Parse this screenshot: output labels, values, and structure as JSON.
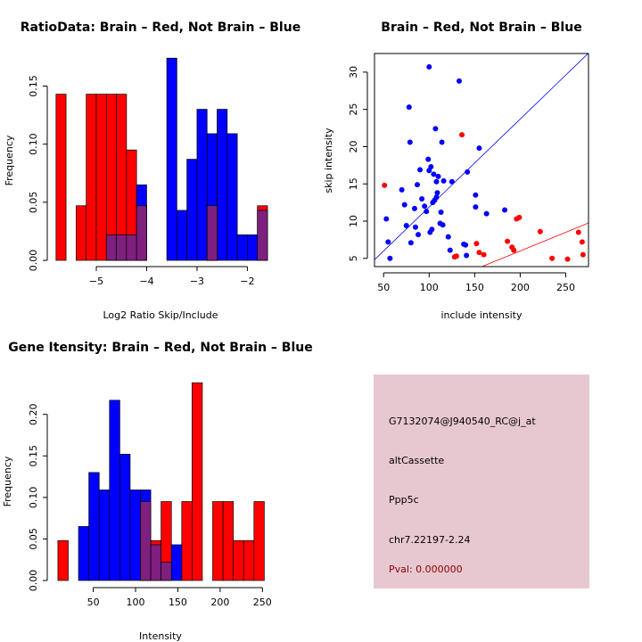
{
  "colors": {
    "brain": "#ff0000",
    "not_brain": "#0000ff",
    "overlap": "#7f1f7f",
    "panel_bg": "#e8c8d0",
    "pval": "#8b0000"
  },
  "chart_data": [
    {
      "type": "histogram",
      "title": "RatioData: Brain – Red, Not Brain – Blue",
      "xlabel": "Log2 Ratio Skip/Include",
      "ylabel": "Frequency",
      "xlim": [
        -5.85,
        -1.6
      ],
      "ylim": [
        0,
        0.178
      ],
      "xticks": [
        -5,
        -4,
        -3,
        -2
      ],
      "xtick_labels": [
        "−5",
        "−4",
        "−3",
        "−2"
      ],
      "yticks": [
        0,
        0.05,
        0.1,
        0.15
      ],
      "ytick_labels": [
        "0.00",
        "0.05",
        "0.10",
        "0.15"
      ],
      "bin_width": 0.2,
      "series": [
        {
          "name": "Brain",
          "color": "red",
          "bins": [
            {
              "x": -5.8,
              "h": 0.143
            },
            {
              "x": -5.4,
              "h": 0.047
            },
            {
              "x": -5.2,
              "h": 0.143
            },
            {
              "x": -5.0,
              "h": 0.143
            },
            {
              "x": -4.8,
              "h": 0.143
            },
            {
              "x": -4.6,
              "h": 0.143
            },
            {
              "x": -4.4,
              "h": 0.095
            },
            {
              "x": -4.2,
              "h": 0.047
            },
            {
              "x": -2.8,
              "h": 0.047
            },
            {
              "x": -1.8,
              "h": 0.047
            }
          ]
        },
        {
          "name": "Not Brain",
          "color": "blue",
          "bins": [
            {
              "x": -4.8,
              "h": 0.022
            },
            {
              "x": -4.6,
              "h": 0.022
            },
            {
              "x": -4.4,
              "h": 0.022
            },
            {
              "x": -4.2,
              "h": 0.065
            },
            {
              "x": -3.6,
              "h": 0.174
            },
            {
              "x": -3.4,
              "h": 0.043
            },
            {
              "x": -3.2,
              "h": 0.087
            },
            {
              "x": -3.0,
              "h": 0.13
            },
            {
              "x": -2.8,
              "h": 0.109
            },
            {
              "x": -2.6,
              "h": 0.13
            },
            {
              "x": -2.4,
              "h": 0.109
            },
            {
              "x": -2.2,
              "h": 0.022
            },
            {
              "x": -2.0,
              "h": 0.022
            },
            {
              "x": -1.8,
              "h": 0.043
            }
          ]
        }
      ]
    },
    {
      "type": "scatter",
      "title": "Brain – Red, Not Brain – Blue",
      "xlabel": "include intensity",
      "ylabel": "skip intensity",
      "xlim": [
        40,
        275
      ],
      "ylim": [
        3.9,
        32.5
      ],
      "xticks": [
        50,
        100,
        150,
        200,
        250
      ],
      "xtick_labels": [
        "50",
        "100",
        "150",
        "200",
        "250"
      ],
      "yticks": [
        5,
        10,
        15,
        20,
        25,
        30
      ],
      "ytick_labels": [
        "5",
        "10",
        "15",
        "20",
        "25",
        "30"
      ],
      "lines": [
        {
          "name": "not-brain-fit",
          "color": "blue",
          "intercept": 0.1,
          "slope": 0.118
        },
        {
          "name": "brain-fit",
          "color": "red",
          "intercept": -4.0,
          "slope": 0.05
        }
      ],
      "series": [
        {
          "name": "Not Brain",
          "color": "blue",
          "points": [
            [
              53,
              10.3
            ],
            [
              55,
              7.2
            ],
            [
              57,
              5.0
            ],
            [
              70,
              14.2
            ],
            [
              73,
              12.2
            ],
            [
              75,
              9.4
            ],
            [
              78,
              25.3
            ],
            [
              79,
              20.6
            ],
            [
              80,
              7.1
            ],
            [
              84,
              11.7
            ],
            [
              85,
              9.2
            ],
            [
              87,
              14.9
            ],
            [
              88,
              8.2
            ],
            [
              90,
              16.9
            ],
            [
              92,
              13.0
            ],
            [
              95,
              12.0
            ],
            [
              97,
              11.3
            ],
            [
              99,
              18.3
            ],
            [
              100,
              30.7
            ],
            [
              100,
              16.8
            ],
            [
              101,
              8.5
            ],
            [
              102,
              17.3
            ],
            [
              103,
              8.9
            ],
            [
              104,
              12.5
            ],
            [
              105,
              16.3
            ],
            [
              106,
              12.8
            ],
            [
              107,
              22.4
            ],
            [
              108,
              15.3
            ],
            [
              108,
              13.2
            ],
            [
              109,
              13.8
            ],
            [
              110,
              16.0
            ],
            [
              112,
              9.7
            ],
            [
              113,
              11.2
            ],
            [
              114,
              20.6
            ],
            [
              115,
              9.5
            ],
            [
              116,
              15.4
            ],
            [
              121,
              7.9
            ],
            [
              123,
              6.1
            ],
            [
              125,
              15.3
            ],
            [
              133,
              28.8
            ],
            [
              138,
              6.9
            ],
            [
              140,
              6.8
            ],
            [
              141,
              5.4
            ],
            [
              142,
              16.6
            ],
            [
              151,
              13.5
            ],
            [
              151,
              11.9
            ],
            [
              155,
              19.8
            ],
            [
              163,
              11.0
            ],
            [
              183,
              11.5
            ]
          ]
        },
        {
          "name": "Brain",
          "color": "red",
          "points": [
            [
              51,
              14.8
            ],
            [
              128,
              5.2
            ],
            [
              130,
              5.3
            ],
            [
              136,
              21.6
            ],
            [
              152,
              7.0
            ],
            [
              155,
              5.8
            ],
            [
              160,
              5.5
            ],
            [
              186,
              7.3
            ],
            [
              191,
              6.5
            ],
            [
              193,
              6.1
            ],
            [
              196,
              10.3
            ],
            [
              199,
              10.5
            ],
            [
              222,
              8.6
            ],
            [
              235,
              5.0
            ],
            [
              252,
              4.9
            ],
            [
              264,
              8.5
            ],
            [
              268,
              7.2
            ],
            [
              269,
              5.5
            ]
          ]
        }
      ]
    },
    {
      "type": "histogram",
      "title": "Gene Itensity: Brain – Red, Not Brain – Blue",
      "xlabel": "Intensity",
      "ylabel": "Frequency",
      "xlim": [
        3,
        256
      ],
      "ylim": [
        0,
        0.248
      ],
      "xticks": [
        50,
        100,
        150,
        200,
        250
      ],
      "xtick_labels": [
        "50",
        "100",
        "150",
        "200",
        "250"
      ],
      "yticks": [
        0,
        0.05,
        0.1,
        0.15,
        0.2
      ],
      "ytick_labels": [
        "0.00",
        "0.05",
        "0.10",
        "0.15",
        "0.20"
      ],
      "bin_width": 12.2,
      "series": [
        {
          "name": "Brain",
          "color": "red",
          "bins": [
            {
              "x": 8.2,
              "h": 0.048
            },
            {
              "x": 105.8,
              "h": 0.095
            },
            {
              "x": 118.0,
              "h": 0.048
            },
            {
              "x": 130.2,
              "h": 0.095
            },
            {
              "x": 154.6,
              "h": 0.095
            },
            {
              "x": 166.8,
              "h": 0.238
            },
            {
              "x": 191.2,
              "h": 0.095
            },
            {
              "x": 203.4,
              "h": 0.095
            },
            {
              "x": 215.6,
              "h": 0.048
            },
            {
              "x": 227.8,
              "h": 0.048
            },
            {
              "x": 240.0,
              "h": 0.095
            }
          ]
        },
        {
          "name": "Not Brain",
          "color": "blue",
          "bins": [
            {
              "x": 32.6,
              "h": 0.065
            },
            {
              "x": 44.8,
              "h": 0.13
            },
            {
              "x": 57.0,
              "h": 0.109
            },
            {
              "x": 69.2,
              "h": 0.217
            },
            {
              "x": 81.4,
              "h": 0.152
            },
            {
              "x": 93.6,
              "h": 0.109
            },
            {
              "x": 105.8,
              "h": 0.109
            },
            {
              "x": 118.0,
              "h": 0.043
            },
            {
              "x": 130.2,
              "h": 0.022
            },
            {
              "x": 142.4,
              "h": 0.043
            }
          ]
        }
      ]
    }
  ],
  "info_panel": {
    "probe_id": "G7132074@J940540_RC@j_at",
    "event_type": "altCassette",
    "gene": "Ppp5c",
    "location": "chr7.22197-2.24",
    "pval": "Pval: 0.000000"
  }
}
